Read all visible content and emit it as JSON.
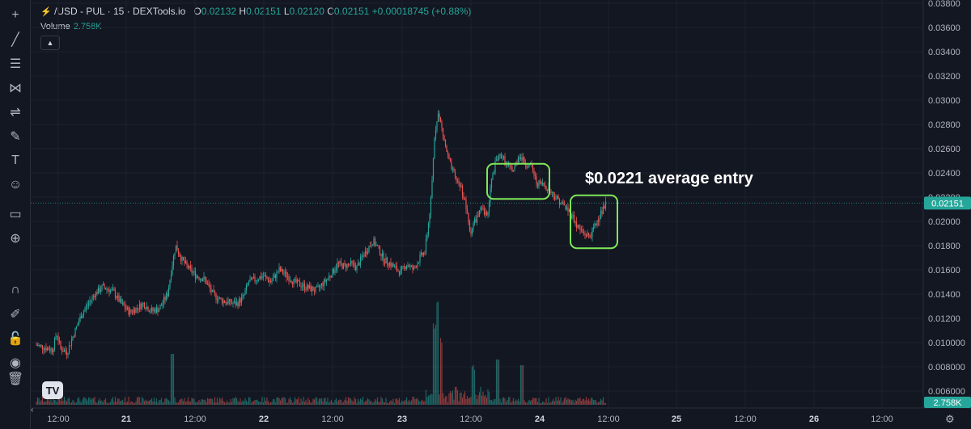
{
  "legend": {
    "symbol": "/USD - PUL · 15 · DEXTools.io",
    "o_label": "O",
    "o": "0.02132",
    "h_label": "H",
    "h": "0.02151",
    "l_label": "L",
    "l": "0.02120",
    "c_label": "C",
    "c": "0.02151",
    "change": "+0.00018745 (+0.88%)"
  },
  "volume_legend": {
    "label": "Volume",
    "value": "2.758K"
  },
  "annotation": {
    "text": "$0.0221 average entry"
  },
  "toolbar_icons": [
    "crosshair-icon",
    "trend-line-icon",
    "fib-icon",
    "pattern-icon",
    "forecast-icon",
    "brush-icon",
    "text-icon",
    "emoji-icon",
    "ruler-icon",
    "zoom-in-icon",
    "magnet-icon",
    "lock-drawing-icon",
    "unlock-icon",
    "eye-icon",
    "trash-icon"
  ],
  "colors": {
    "up": "#26a69a",
    "down": "#ef5350",
    "highlight_box": "#7fe857",
    "last_price_bg": "#26a69a",
    "background": "#131722"
  },
  "chart_data": {
    "type": "candlestick",
    "interval": "15",
    "y_ticks": [
      "0.03800",
      "0.03600",
      "0.03400",
      "0.03200",
      "0.03000",
      "0.02800",
      "0.02600",
      "0.02400",
      "0.02200",
      "0.02000",
      "0.01800",
      "0.01600",
      "0.01400",
      "0.01200",
      "0.010000",
      "0.008000",
      "0.006000"
    ],
    "ylim": [
      0.0054,
      0.0384
    ],
    "x_ticks": [
      "12:00",
      "21",
      "12:00",
      "22",
      "12:00",
      "23",
      "12:00",
      "24",
      "12:00",
      "25",
      "12:00",
      "26",
      "12:00"
    ],
    "last_price": "0.02151",
    "last_volume": "2.758K",
    "price_path": [
      [
        0,
        0.0098
      ],
      [
        10,
        0.0096
      ],
      [
        20,
        0.0094
      ],
      [
        25,
        0.0108
      ],
      [
        30,
        0.0095
      ],
      [
        38,
        0.0092
      ],
      [
        45,
        0.0105
      ],
      [
        55,
        0.0122
      ],
      [
        62,
        0.013
      ],
      [
        72,
        0.014
      ],
      [
        82,
        0.0146
      ],
      [
        95,
        0.0142
      ],
      [
        105,
        0.0132
      ],
      [
        115,
        0.0125
      ],
      [
        123,
        0.0128
      ],
      [
        132,
        0.0132
      ],
      [
        142,
        0.0126
      ],
      [
        152,
        0.0128
      ],
      [
        162,
        0.014
      ],
      [
        168,
        0.0165
      ],
      [
        172,
        0.018
      ],
      [
        180,
        0.0168
      ],
      [
        190,
        0.016
      ],
      [
        198,
        0.0155
      ],
      [
        208,
        0.0152
      ],
      [
        218,
        0.014
      ],
      [
        228,
        0.0135
      ],
      [
        238,
        0.0133
      ],
      [
        248,
        0.0132
      ],
      [
        256,
        0.0138
      ],
      [
        262,
        0.015
      ],
      [
        270,
        0.0152
      ],
      [
        280,
        0.0155
      ],
      [
        290,
        0.015
      ],
      [
        300,
        0.016
      ],
      [
        310,
        0.0155
      ],
      [
        318,
        0.015
      ],
      [
        326,
        0.0148
      ],
      [
        336,
        0.0145
      ],
      [
        346,
        0.0143
      ],
      [
        356,
        0.015
      ],
      [
        366,
        0.0158
      ],
      [
        372,
        0.0165
      ],
      [
        380,
        0.0163
      ],
      [
        388,
        0.0165
      ],
      [
        396,
        0.0162
      ],
      [
        402,
        0.017
      ],
      [
        410,
        0.0178
      ],
      [
        416,
        0.0184
      ],
      [
        422,
        0.0178
      ],
      [
        430,
        0.0168
      ],
      [
        436,
        0.0166
      ],
      [
        442,
        0.0162
      ],
      [
        450,
        0.0158
      ],
      [
        458,
        0.0165
      ],
      [
        466,
        0.016
      ],
      [
        474,
        0.017
      ],
      [
        480,
        0.0175
      ],
      [
        484,
        0.0195
      ],
      [
        488,
        0.022
      ],
      [
        492,
        0.027
      ],
      [
        496,
        0.029
      ],
      [
        500,
        0.028
      ],
      [
        506,
        0.026
      ],
      [
        512,
        0.0245
      ],
      [
        518,
        0.0235
      ],
      [
        524,
        0.023
      ],
      [
        530,
        0.0215
      ],
      [
        536,
        0.019
      ],
      [
        540,
        0.0198
      ],
      [
        546,
        0.0205
      ],
      [
        550,
        0.021
      ],
      [
        555,
        0.0205
      ],
      [
        558,
        0.021
      ],
      [
        562,
        0.0232
      ],
      [
        568,
        0.025
      ],
      [
        575,
        0.0255
      ],
      [
        582,
        0.0245
      ],
      [
        590,
        0.0242
      ],
      [
        596,
        0.0255
      ],
      [
        604,
        0.0248
      ],
      [
        612,
        0.0245
      ],
      [
        618,
        0.0232
      ],
      [
        626,
        0.023
      ],
      [
        632,
        0.0228
      ],
      [
        636,
        0.0224
      ],
      [
        642,
        0.022
      ],
      [
        650,
        0.0214
      ],
      [
        656,
        0.021
      ],
      [
        662,
        0.0205
      ],
      [
        668,
        0.0196
      ],
      [
        676,
        0.019
      ],
      [
        684,
        0.0188
      ],
      [
        690,
        0.0196
      ],
      [
        696,
        0.0205
      ],
      [
        701,
        0.021
      ],
      [
        704,
        0.0215
      ]
    ],
    "volume_spikes": [
      [
        168,
        4.5
      ],
      [
        492,
        6.5
      ],
      [
        496,
        9
      ],
      [
        500,
        5
      ],
      [
        540,
        3
      ],
      [
        570,
        4
      ],
      [
        600,
        3.5
      ]
    ],
    "highlight_boxes": [
      {
        "price_top": 0.02475,
        "price_bottom": 0.02185,
        "x_start": 557,
        "x_end": 634
      },
      {
        "price_top": 0.02215,
        "price_bottom": 0.01778,
        "x_start": 660,
        "x_end": 718
      }
    ]
  }
}
